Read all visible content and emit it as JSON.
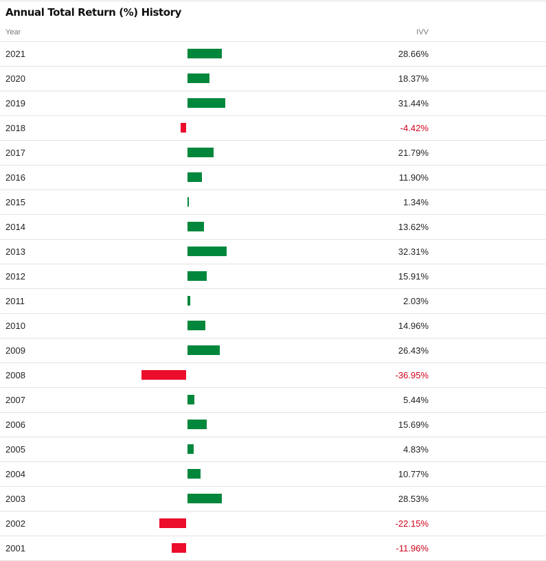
{
  "title": "Annual Total Return (%) History",
  "header": {
    "year_label": "Year",
    "fund_label": "IVV"
  },
  "colors": {
    "positive_bar": "#00873c",
    "negative_bar": "#ec0c2c",
    "negative_text": "#d3001b"
  },
  "chart_data": {
    "type": "bar",
    "orientation": "horizontal",
    "title": "Annual Total Return (%) History",
    "xlabel": "",
    "ylabel": "",
    "categories": [
      "2021",
      "2020",
      "2019",
      "2018",
      "2017",
      "2016",
      "2015",
      "2014",
      "2013",
      "2012",
      "2011",
      "2010",
      "2009",
      "2008",
      "2007",
      "2006",
      "2005",
      "2004",
      "2003",
      "2002",
      "2001"
    ],
    "series": [
      {
        "name": "IVV",
        "values": [
          28.66,
          18.37,
          31.44,
          -4.42,
          21.79,
          11.9,
          1.34,
          13.62,
          32.31,
          15.91,
          2.03,
          14.96,
          26.43,
          -36.95,
          5.44,
          15.69,
          4.83,
          10.77,
          28.53,
          -22.15,
          -11.96
        ]
      }
    ],
    "value_labels": [
      "28.66%",
      "18.37%",
      "31.44%",
      "-4.42%",
      "21.79%",
      "11.90%",
      "1.34%",
      "13.62%",
      "32.31%",
      "15.91%",
      "2.03%",
      "14.96%",
      "26.43%",
      "-36.95%",
      "5.44%",
      "15.69%",
      "4.83%",
      "10.77%",
      "28.53%",
      "-22.15%",
      "-11.96%"
    ],
    "xlim": [
      -37,
      33
    ],
    "grid": false,
    "legend": "none"
  }
}
